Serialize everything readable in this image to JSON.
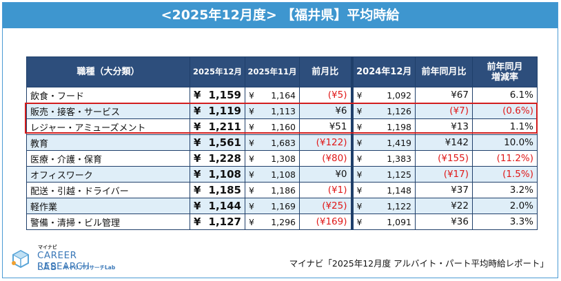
{
  "title": "<2025年12月度> 【福井県】平均時給",
  "table": {
    "headers": {
      "category": "職種（大分類）",
      "cur": "2025年12月",
      "prev": "2025年11月",
      "mom": "前月比",
      "lastyear": "2024年12月",
      "yoy": "前年同月比",
      "yoy_rate_1": "前年同月",
      "yoy_rate_2": "増減率"
    },
    "currency": "¥",
    "rows": [
      {
        "category": "飲食・フード",
        "cur": "1,159",
        "prev": "1,164",
        "mom": "(¥5)",
        "mom_neg": true,
        "lastyear": "1,092",
        "yoy": "¥67",
        "yoy_neg": false,
        "rate": "6.1%",
        "rate_neg": false
      },
      {
        "category": "販売・接客・サービス",
        "cur": "1,119",
        "prev": "1,113",
        "mom": "¥6",
        "mom_neg": false,
        "lastyear": "1,126",
        "yoy": "(¥7)",
        "yoy_neg": true,
        "rate": "(0.6%)",
        "rate_neg": true
      },
      {
        "category": "レジャー・アミューズメント",
        "cur": "1,211",
        "prev": "1,160",
        "mom": "¥51",
        "mom_neg": false,
        "lastyear": "1,198",
        "yoy": "¥13",
        "yoy_neg": false,
        "rate": "1.1%",
        "rate_neg": false
      },
      {
        "category": "教育",
        "cur": "1,561",
        "prev": "1,683",
        "mom": "(¥122)",
        "mom_neg": true,
        "lastyear": "1,419",
        "yoy": "¥142",
        "yoy_neg": false,
        "rate": "10.0%",
        "rate_neg": false
      },
      {
        "category": "医療・介護・保育",
        "cur": "1,228",
        "prev": "1,308",
        "mom": "(¥80)",
        "mom_neg": true,
        "lastyear": "1,383",
        "yoy": "(¥155)",
        "yoy_neg": true,
        "rate": "(11.2%)",
        "rate_neg": true
      },
      {
        "category": "オフィスワーク",
        "cur": "1,108",
        "prev": "1,108",
        "mom": "¥0",
        "mom_neg": false,
        "lastyear": "1,125",
        "yoy": "(¥17)",
        "yoy_neg": true,
        "rate": "(1.5%)",
        "rate_neg": true
      },
      {
        "category": "配送・引越・ドライバー",
        "cur": "1,185",
        "prev": "1,186",
        "mom": "(¥1)",
        "mom_neg": true,
        "lastyear": "1,148",
        "yoy": "¥37",
        "yoy_neg": false,
        "rate": "3.2%",
        "rate_neg": false
      },
      {
        "category": "軽作業",
        "cur": "1,144",
        "prev": "1,169",
        "mom": "(¥25)",
        "mom_neg": true,
        "lastyear": "1,122",
        "yoy": "¥22",
        "yoy_neg": false,
        "rate": "2.0%",
        "rate_neg": false
      },
      {
        "category": "警備・清掃・ビル管理",
        "cur": "1,127",
        "prev": "1,296",
        "mom": "(¥169)",
        "mom_neg": true,
        "lastyear": "1,091",
        "yoy": "¥36",
        "yoy_neg": false,
        "rate": "3.3%",
        "rate_neg": false
      }
    ]
  },
  "logo": {
    "top": "マイナビ",
    "line1": "CAREER RESEARCH",
    "line2": "LAB",
    "line3": "キャリアリサーチLab",
    "icon": "cube-icon"
  },
  "source": "マイナビ「2025年12月度 アルバイト・パート平均時給レポート」",
  "colors": {
    "header_bg": "#2d4e7c",
    "title_bg": "#3e96cf",
    "negative": "#e01818",
    "highlight": "#d21d1d",
    "stripe": "#dfeef8"
  }
}
